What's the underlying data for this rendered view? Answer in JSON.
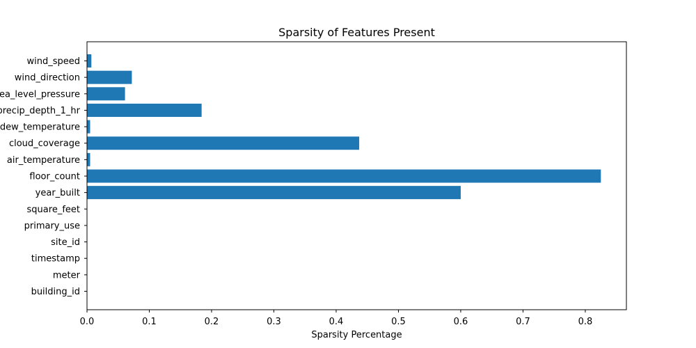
{
  "chart_data": {
    "type": "bar",
    "orientation": "horizontal",
    "title": "Sparsity of Features Present",
    "xlabel": "Sparsity Percentage",
    "ylabel": "",
    "xlim": [
      0,
      0.866
    ],
    "xticks": [
      "0.0",
      "0.1",
      "0.2",
      "0.3",
      "0.4",
      "0.5",
      "0.6",
      "0.7",
      "0.8"
    ],
    "categories": [
      "building_id",
      "meter",
      "timestamp",
      "site_id",
      "primary_use",
      "square_feet",
      "year_built",
      "floor_count",
      "air_temperature",
      "cloud_coverage",
      "dew_temperature",
      "precip_depth_1_hr",
      "sea_level_pressure",
      "wind_direction",
      "wind_speed"
    ],
    "values": [
      0,
      0,
      0,
      0,
      0,
      0,
      0.6,
      0.825,
      0.005,
      0.437,
      0.005,
      0.184,
      0.061,
      0.072,
      0.007
    ],
    "bar_color": "#1f77b4",
    "grid": false,
    "legend": "none"
  }
}
